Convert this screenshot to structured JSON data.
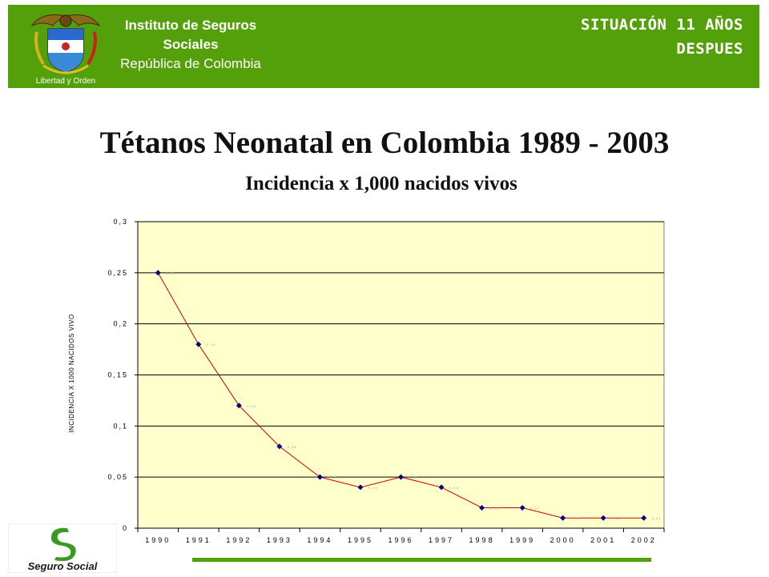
{
  "header": {
    "institute_line1": "Instituto de Seguros",
    "institute_line2": "Sociales",
    "institute_line3": "República de Colombia",
    "motto": "Libertad y Orden",
    "situation_line1": "SITUACIÓN 11 AÑOS",
    "situation_line2": "DESPUES"
  },
  "footer": {
    "logo_text": "Seguro Social"
  },
  "colors": {
    "header_green": "#54a00a",
    "plot_bg": "#ffffcc",
    "line": "#cc0000",
    "marker": "#000080"
  },
  "chart_data": {
    "type": "line",
    "title": "Tétanos Neonatal en Colombia 1989 - 2003",
    "subtitle": "Incidencia x 1,000 nacidos vivos",
    "ylabel": "INCIDENCIA X 1000 NACIDOS VIVO",
    "xlabel": "",
    "ylim": [
      0,
      0.3
    ],
    "y_ticks": [
      "0",
      "0,05",
      "0,1",
      "0,15",
      "0,2",
      "0,25",
      "0,3"
    ],
    "grid": true,
    "categories": [
      "1990",
      "1991",
      "1992",
      "1993",
      "1994",
      "1995",
      "1996",
      "1997",
      "1998",
      "1999",
      "2000",
      "2001",
      "2002"
    ],
    "series": [
      {
        "values": [
          0.25,
          0.18,
          0.12,
          0.08,
          0.05,
          0.04,
          0.05,
          0.04,
          0.02,
          0.02,
          0.01,
          0.01,
          0.01
        ],
        "labels": [
          "0,25",
          "0,18",
          "0,12",
          "0,08",
          "0,05",
          "0,04",
          "0,05",
          "0,04",
          "0,02",
          "0,02",
          "0,01",
          "0,01",
          "0,01"
        ]
      }
    ]
  }
}
